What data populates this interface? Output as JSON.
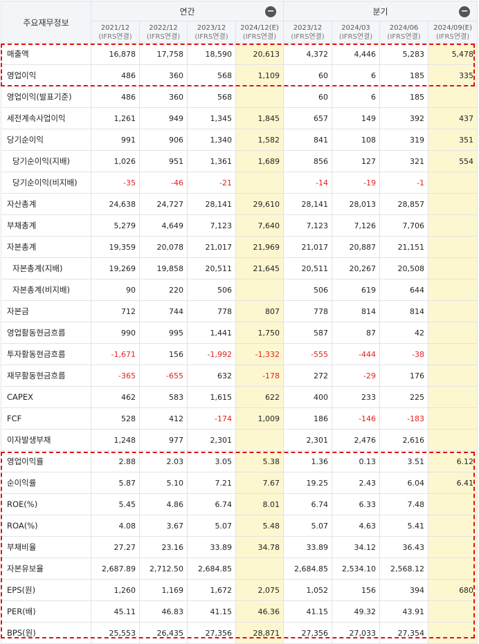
{
  "header": {
    "corner_label": "주요재무정보",
    "annual_label": "연간",
    "quarter_label": "분기",
    "collapse_icon": "minus-circle-icon",
    "periods": [
      {
        "date": "2021/12",
        "basis": "(IFRS연결)"
      },
      {
        "date": "2022/12",
        "basis": "(IFRS연결)"
      },
      {
        "date": "2023/12",
        "basis": "(IFRS연결)"
      },
      {
        "date": "2024/12(E)",
        "basis": "(IFRS연결)"
      },
      {
        "date": "2023/12",
        "basis": "(IFRS연결)"
      },
      {
        "date": "2024/03",
        "basis": "(IFRS연결)"
      },
      {
        "date": "2024/06",
        "basis": "(IFRS연결)"
      },
      {
        "date": "2024/09(E)",
        "basis": "(IFRS연결)"
      }
    ]
  },
  "rows": [
    {
      "label": "매출액",
      "values": [
        "16,878",
        "17,758",
        "18,590",
        "20,613",
        "4,372",
        "4,446",
        "5,283",
        "5,478"
      ]
    },
    {
      "label": "영업이익",
      "values": [
        "486",
        "360",
        "568",
        "1,109",
        "60",
        "6",
        "185",
        "335"
      ]
    },
    {
      "label": "영업이익(발표기준)",
      "values": [
        "486",
        "360",
        "568",
        "",
        "60",
        "6",
        "185",
        ""
      ]
    },
    {
      "label": "세전계속사업이익",
      "values": [
        "1,261",
        "949",
        "1,345",
        "1,845",
        "657",
        "149",
        "392",
        "437"
      ]
    },
    {
      "label": "당기순이익",
      "values": [
        "991",
        "906",
        "1,340",
        "1,582",
        "841",
        "108",
        "319",
        "351"
      ]
    },
    {
      "label": "당기순이익(지배)",
      "indent": true,
      "values": [
        "1,026",
        "951",
        "1,361",
        "1,689",
        "856",
        "127",
        "321",
        "554"
      ]
    },
    {
      "label": "당기순이익(비지배)",
      "indent": true,
      "values": [
        "-35",
        "-46",
        "-21",
        "",
        "-14",
        "-19",
        "-1",
        ""
      ]
    },
    {
      "label": "자산총계",
      "values": [
        "24,638",
        "24,727",
        "28,141",
        "29,610",
        "28,141",
        "28,013",
        "28,857",
        ""
      ]
    },
    {
      "label": "부채총계",
      "values": [
        "5,279",
        "4,649",
        "7,123",
        "7,640",
        "7,123",
        "7,126",
        "7,706",
        ""
      ]
    },
    {
      "label": "자본총계",
      "values": [
        "19,359",
        "20,078",
        "21,017",
        "21,969",
        "21,017",
        "20,887",
        "21,151",
        ""
      ]
    },
    {
      "label": "자본총계(지배)",
      "indent": true,
      "values": [
        "19,269",
        "19,858",
        "20,511",
        "21,645",
        "20,511",
        "20,267",
        "20,508",
        ""
      ]
    },
    {
      "label": "자본총계(비지배)",
      "indent": true,
      "values": [
        "90",
        "220",
        "506",
        "",
        "506",
        "619",
        "644",
        ""
      ]
    },
    {
      "label": "자본금",
      "values": [
        "712",
        "744",
        "778",
        "807",
        "778",
        "814",
        "814",
        ""
      ]
    },
    {
      "label": "영업활동현금흐름",
      "values": [
        "990",
        "995",
        "1,441",
        "1,750",
        "587",
        "87",
        "42",
        ""
      ]
    },
    {
      "label": "투자활동현금흐름",
      "values": [
        "-1,671",
        "156",
        "-1,992",
        "-1,332",
        "-555",
        "-444",
        "-38",
        ""
      ]
    },
    {
      "label": "재무활동현금흐름",
      "values": [
        "-365",
        "-655",
        "632",
        "-178",
        "272",
        "-29",
        "176",
        ""
      ]
    },
    {
      "label": "CAPEX",
      "values": [
        "462",
        "583",
        "1,615",
        "622",
        "400",
        "233",
        "225",
        ""
      ]
    },
    {
      "label": "FCF",
      "values": [
        "528",
        "412",
        "-174",
        "1,009",
        "186",
        "-146",
        "-183",
        ""
      ]
    },
    {
      "label": "이자발생부채",
      "values": [
        "1,248",
        "977",
        "2,301",
        "",
        "2,301",
        "2,476",
        "2,616",
        ""
      ]
    },
    {
      "label": "영업이익률",
      "values": [
        "2.88",
        "2.03",
        "3.05",
        "5.38",
        "1.36",
        "0.13",
        "3.51",
        "6.12"
      ]
    },
    {
      "label": "순이익률",
      "values": [
        "5.87",
        "5.10",
        "7.21",
        "7.67",
        "19.25",
        "2.43",
        "6.04",
        "6.41"
      ]
    },
    {
      "label": "ROE(%)",
      "values": [
        "5.45",
        "4.86",
        "6.74",
        "8.01",
        "6.74",
        "6.33",
        "7.48",
        ""
      ]
    },
    {
      "label": "ROA(%)",
      "values": [
        "4.08",
        "3.67",
        "5.07",
        "5.48",
        "5.07",
        "4.63",
        "5.41",
        ""
      ]
    },
    {
      "label": "부채비율",
      "values": [
        "27.27",
        "23.16",
        "33.89",
        "34.78",
        "33.89",
        "34.12",
        "36.43",
        ""
      ]
    },
    {
      "label": "자본유보율",
      "values": [
        "2,687.89",
        "2,712.50",
        "2,684.85",
        "",
        "2,684.85",
        "2,534.10",
        "2,568.12",
        ""
      ]
    },
    {
      "label": "EPS(원)",
      "values": [
        "1,260",
        "1,169",
        "1,672",
        "2,075",
        "1,052",
        "156",
        "394",
        "680"
      ]
    },
    {
      "label": "PER(배)",
      "values": [
        "45.11",
        "46.83",
        "41.15",
        "46.36",
        "41.15",
        "49.32",
        "43.91",
        ""
      ]
    },
    {
      "label": "BPS(원)",
      "values": [
        "25,553",
        "26,435",
        "27,356",
        "28,871",
        "27,356",
        "27,033",
        "27,354",
        ""
      ]
    }
  ],
  "colors": {
    "negative": "#e02020",
    "estimate_background": "#fdf7d0",
    "highlight_border": "#e01010",
    "header_background": "#f3f5f8"
  }
}
